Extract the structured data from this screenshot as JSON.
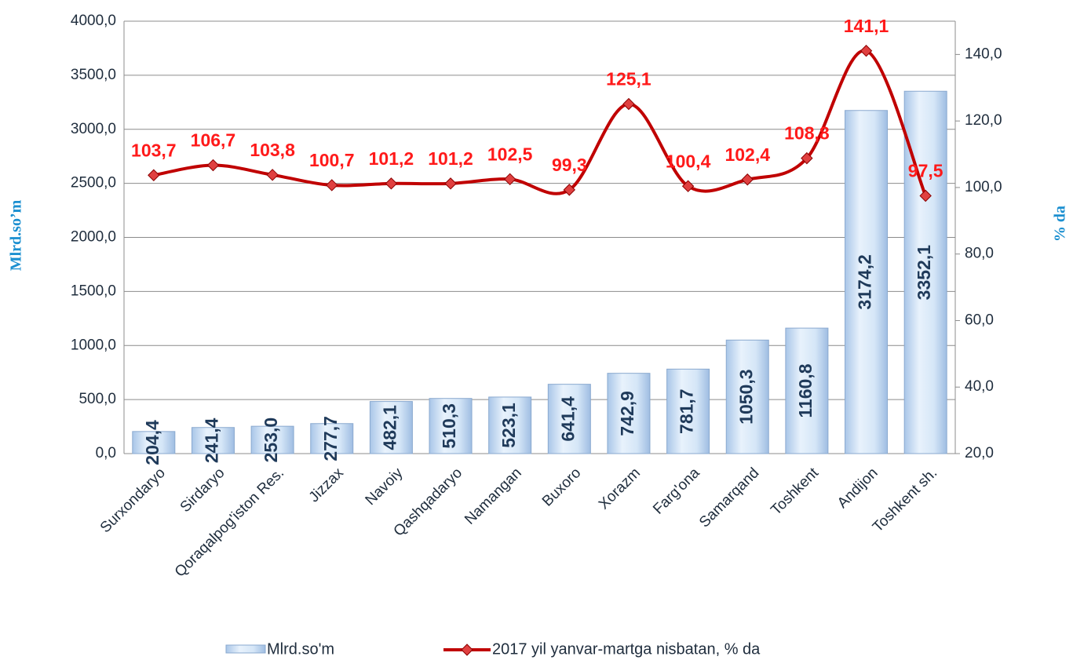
{
  "chart_data": {
    "type": "bar_line",
    "y_axis_label": "Mlrd.so’m",
    "y2_axis_label": "% da",
    "categories": [
      "Surxondaryo",
      "Sirdaryo",
      "Qoraqalpog'iston Res.",
      "Jizzax",
      "Navoiy",
      "Qashqadaryo",
      "Namangan",
      "Buxoro",
      "Xorazm",
      "Farg'ona",
      "Samarqand",
      "Toshkent",
      "Andijon",
      "Toshkent sh."
    ],
    "series": [
      {
        "name": "Mlrd.so'm",
        "color": "#cfe2f6",
        "values": [
          204.4,
          241.4,
          253.0,
          277.7,
          482.1,
          510.3,
          523.1,
          641.4,
          742.9,
          781.7,
          1050.3,
          1160.8,
          3174.2,
          3352.1
        ],
        "value_labels": [
          "204,4",
          "241,4",
          "253,0",
          "277,7",
          "482,1",
          "510,3",
          "523,1",
          "641,4",
          "742,9",
          "781,7",
          "1050,3",
          "1160,8",
          "3174,2",
          "3352,1"
        ]
      },
      {
        "name": "2017 yil yanvar-martga nisbatan, % da",
        "color": "#c00000",
        "axis": "y2",
        "values": [
          103.7,
          106.7,
          103.8,
          100.7,
          101.2,
          101.2,
          102.5,
          99.3,
          125.1,
          100.4,
          102.4,
          108.8,
          141.1,
          97.5
        ],
        "value_labels": [
          "103,7",
          "106,7",
          "103,8",
          "100,7",
          "101,2",
          "101,2",
          "102,5",
          "99,3",
          "125,1",
          "100,4",
          "102,4",
          "108,8",
          "141,1",
          "97,5"
        ]
      }
    ],
    "ylim": [
      0,
      4000
    ],
    "yticks": [
      {
        "value": 0,
        "label": "0,0"
      },
      {
        "value": 500,
        "label": "500,0"
      },
      {
        "value": 1000,
        "label": "1000,0"
      },
      {
        "value": 1500,
        "label": "1500,0"
      },
      {
        "value": 2000,
        "label": "2000,0"
      },
      {
        "value": 2500,
        "label": "2500,0"
      },
      {
        "value": 3000,
        "label": "3000,0"
      },
      {
        "value": 3500,
        "label": "3500,0"
      },
      {
        "value": 4000,
        "label": "4000,0"
      }
    ],
    "y2lim": [
      20,
      150
    ],
    "y2ticks": [
      {
        "value": 20,
        "label": "20,0"
      },
      {
        "value": 40,
        "label": "40,0"
      },
      {
        "value": 60,
        "label": "60,0"
      },
      {
        "value": 80,
        "label": "80,0"
      },
      {
        "value": 100,
        "label": "100,0"
      },
      {
        "value": 120,
        "label": "120,0"
      },
      {
        "value": 140,
        "label": "140,0"
      }
    ],
    "grid": true
  }
}
